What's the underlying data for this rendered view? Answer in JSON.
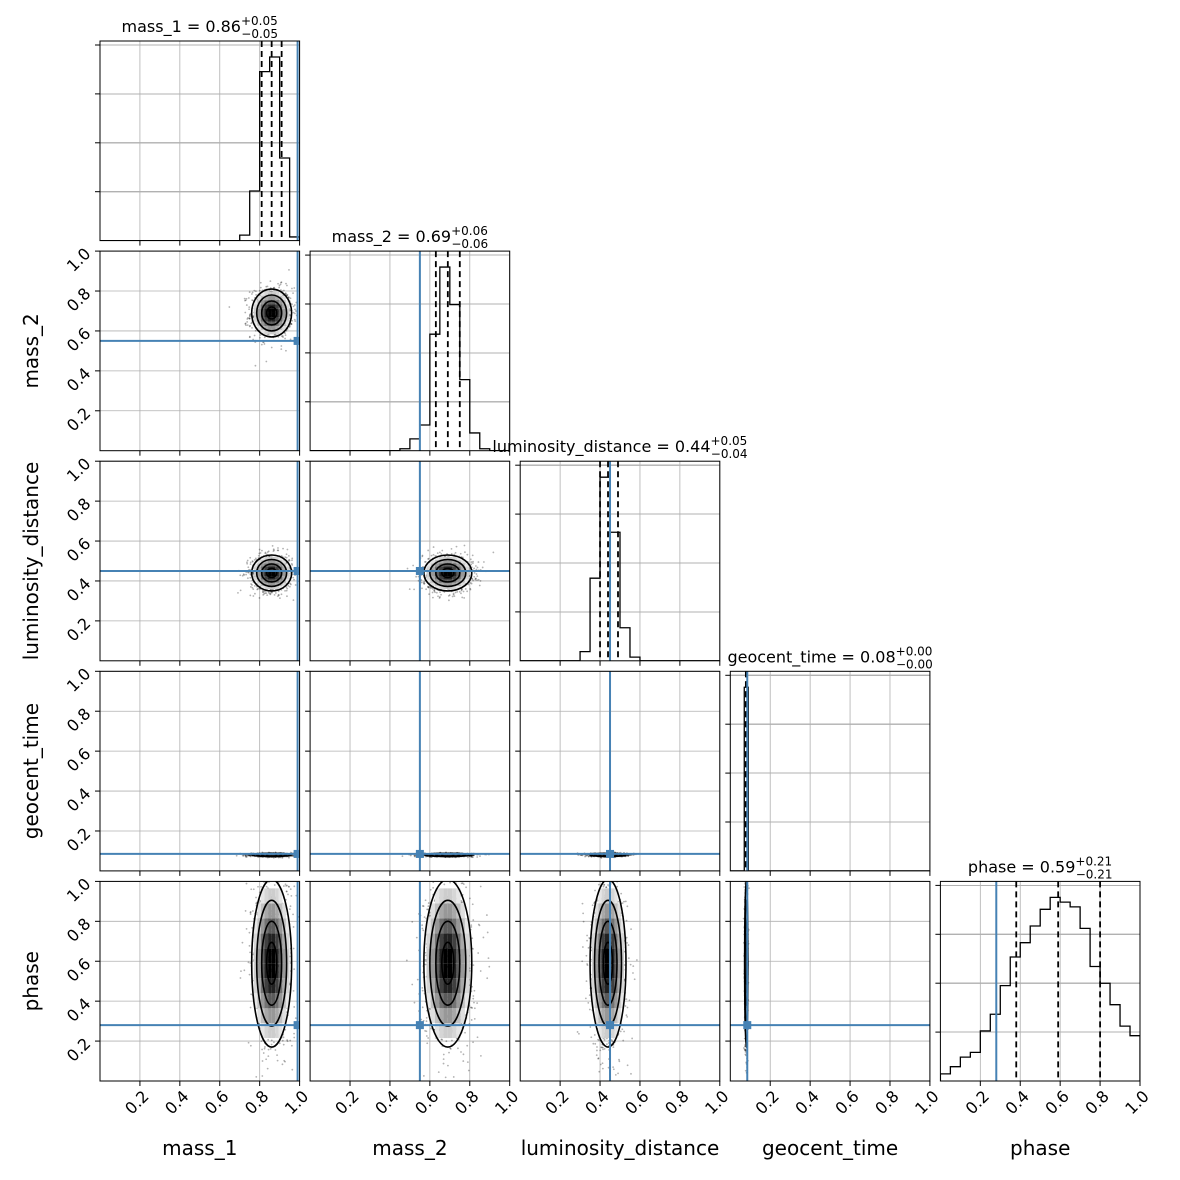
{
  "chart_data": {
    "type": "corner",
    "parameters": [
      "mass_1",
      "mass_2",
      "luminosity_distance",
      "geocent_time",
      "phase"
    ],
    "axis_range": [
      0,
      1
    ],
    "ticks": [
      0.2,
      0.4,
      0.6,
      0.8,
      1.0
    ],
    "tick_labels": [
      "0.2",
      "0.4",
      "0.6",
      "0.8",
      "1.0"
    ],
    "grid": true,
    "truth_color": "#4682b4",
    "truths": [
      0.99,
      0.55,
      0.45,
      0.085,
      0.28
    ],
    "titles": [
      {
        "name": "mass_1",
        "value": "0.86",
        "plus": "+0.05",
        "minus": "−0.05"
      },
      {
        "name": "mass_2",
        "value": "0.69",
        "plus": "+0.06",
        "minus": "−0.06"
      },
      {
        "name": "luminosity_distance",
        "value": "0.44",
        "plus": "+0.05",
        "minus": "−0.04"
      },
      {
        "name": "geocent_time",
        "value": "0.08",
        "plus": "+0.00",
        "minus": "−0.00"
      },
      {
        "name": "phase",
        "value": "0.59",
        "plus": "+0.21",
        "minus": "−0.21"
      }
    ],
    "quantiles": [
      [
        0.81,
        0.86,
        0.91
      ],
      [
        0.63,
        0.69,
        0.75
      ],
      [
        0.4,
        0.44,
        0.49
      ],
      [
        0.078,
        0.08,
        0.083
      ],
      [
        0.38,
        0.59,
        0.8
      ]
    ],
    "histograms": [
      {
        "bin_edges": [
          0.7,
          0.75,
          0.8,
          0.85,
          0.9,
          0.95,
          1.0
        ],
        "counts": [
          0.03,
          0.27,
          0.92,
          1.0,
          0.45,
          0.02
        ]
      },
      {
        "bin_edges": [
          0.45,
          0.5,
          0.55,
          0.6,
          0.65,
          0.7,
          0.75,
          0.8,
          0.85,
          0.9
        ],
        "counts": [
          0.01,
          0.06,
          0.13,
          0.59,
          0.93,
          0.74,
          0.36,
          0.09,
          0.01
        ]
      },
      {
        "bin_edges": [
          0.3,
          0.35,
          0.4,
          0.45,
          0.5,
          0.55,
          0.6
        ],
        "counts": [
          0.05,
          0.45,
          1.0,
          0.7,
          0.18,
          0.02
        ]
      },
      {
        "bin_edges": [
          0.07,
          0.08,
          0.09
        ],
        "counts": [
          0.96,
          0.96
        ]
      },
      {
        "bin_edges": [
          0.0,
          0.05,
          0.1,
          0.15,
          0.2,
          0.25,
          0.3,
          0.35,
          0.4,
          0.45,
          0.5,
          0.55,
          0.6,
          0.65,
          0.7,
          0.75,
          0.8,
          0.85,
          0.9,
          0.95,
          1.0
        ],
        "counts": [
          0.03,
          0.06,
          0.1,
          0.12,
          0.21,
          0.28,
          0.4,
          0.52,
          0.58,
          0.65,
          0.72,
          0.77,
          0.75,
          0.73,
          0.64,
          0.48,
          0.41,
          0.32,
          0.23,
          0.19
        ]
      }
    ],
    "posterior": {
      "means": [
        0.86,
        0.69,
        0.44,
        0.08,
        0.59
      ],
      "sigmas": [
        0.05,
        0.06,
        0.045,
        0.004,
        0.21
      ]
    }
  }
}
